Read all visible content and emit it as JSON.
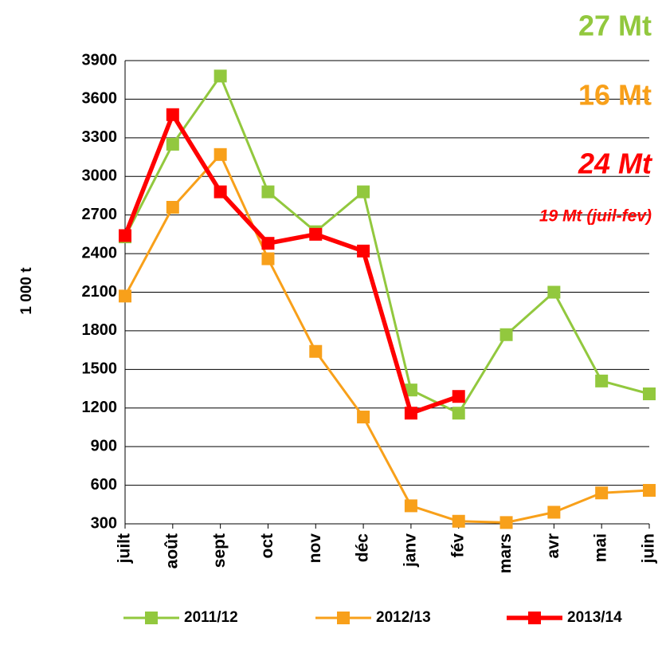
{
  "chart_data": {
    "type": "line",
    "y_label": "1 000 t",
    "categories": [
      "juilt",
      "août",
      "sept",
      "oct",
      "nov",
      "déc",
      "janv",
      "fév",
      "mars",
      "avr",
      "mai",
      "juin"
    ],
    "series": [
      {
        "name": "2011/12",
        "color": "#92c83e",
        "values": [
          2530,
          3250,
          3780,
          2880,
          2570,
          2880,
          1340,
          1160,
          1770,
          2100,
          1410,
          1310
        ]
      },
      {
        "name": "2012/13",
        "color": "#f8a01a",
        "values": [
          2070,
          2760,
          3170,
          2360,
          1640,
          1130,
          440,
          320,
          310,
          390,
          540,
          560
        ]
      },
      {
        "name": "2013/14",
        "color": "#ff0000",
        "values": [
          2540,
          3480,
          2880,
          2480,
          2550,
          2420,
          1160,
          1290,
          null,
          null,
          null,
          null
        ]
      }
    ],
    "ylim": [
      300,
      3900
    ],
    "yticks": [
      300,
      600,
      900,
      1200,
      1500,
      1800,
      2100,
      2400,
      2700,
      3000,
      3300,
      3600,
      3900
    ],
    "grid": true,
    "legend": "bottom",
    "annotations": [
      {
        "text": "27 Mt",
        "color": "#92c83e"
      },
      {
        "text": "16 Mt",
        "color": "#f8a01a"
      },
      {
        "text": "24 Mt",
        "color": "#ff0000"
      },
      {
        "text": "19  Mt (juil-fev)",
        "color": "#ff0000"
      }
    ]
  }
}
